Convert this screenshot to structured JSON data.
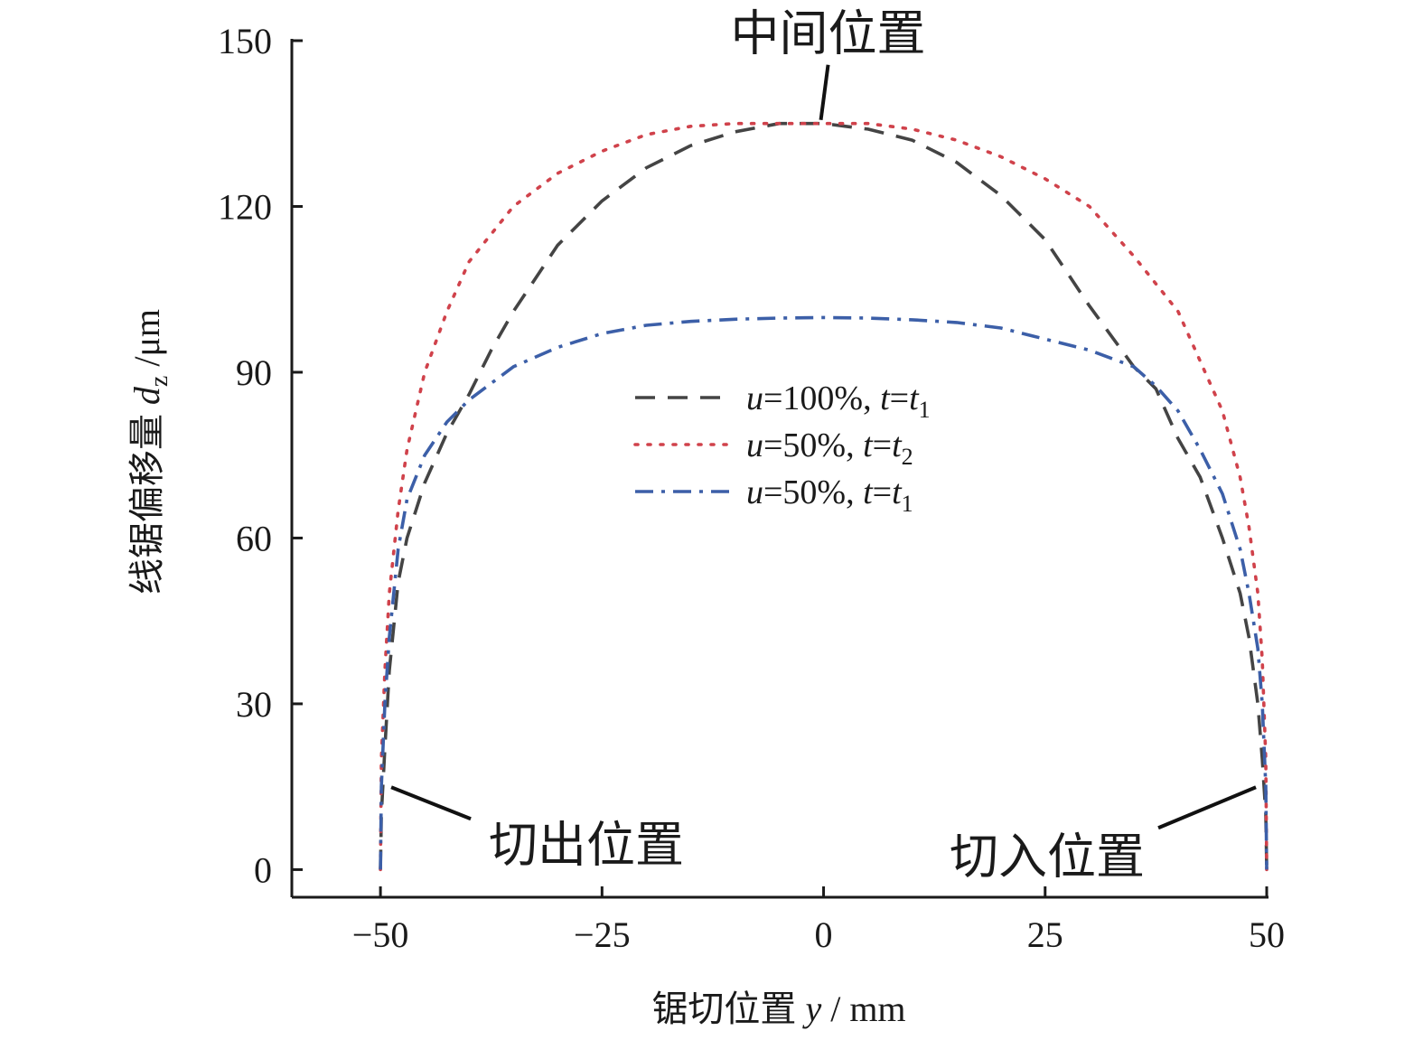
{
  "chart_data": {
    "type": "line",
    "xlabel": {
      "text": "锯切位置 ",
      "var": "y",
      "unit": " / mm"
    },
    "ylabel": {
      "text": "线锯偏移量 ",
      "var": "d",
      "sub": "z",
      "unit": " /μm"
    },
    "xlim": [
      -60,
      50
    ],
    "ylim": [
      -5,
      150
    ],
    "xticks": [
      -50,
      -25,
      0,
      25,
      50
    ],
    "xtick_labels": [
      "−50",
      "−25",
      "0",
      "25",
      "50"
    ],
    "yticks": [
      0,
      30,
      60,
      90,
      120,
      150
    ],
    "ytick_labels": [
      "0",
      "30",
      "60",
      "90",
      "120",
      "150"
    ],
    "grid": false,
    "legend_position": "center",
    "series": [
      {
        "name": "u=100%, t=t1",
        "name_parts": {
          "v1": "u",
          "eq1": "=100%, ",
          "v2": "t",
          "eq2": "=",
          "v3": "t",
          "sub": "1"
        },
        "color": "#444444",
        "style": "dashed",
        "x": [
          -50,
          -49.9,
          -49.5,
          -49,
          -48,
          -47,
          -45,
          -42.5,
          -40,
          -37.5,
          -35,
          -30,
          -25,
          -20,
          -15,
          -10,
          -5,
          0,
          5,
          10,
          15,
          20,
          25,
          30,
          35,
          37.5,
          40,
          42.5,
          45,
          47,
          48,
          49,
          49.5,
          49.9,
          50
        ],
        "y": [
          0,
          10,
          22,
          36,
          52,
          60,
          70,
          79,
          86,
          94,
          101,
          113,
          121,
          127,
          131,
          133.5,
          135,
          135,
          134,
          132,
          128,
          122,
          114,
          102,
          91,
          87,
          78,
          71,
          60,
          50,
          42,
          30,
          20,
          10,
          0
        ]
      },
      {
        "name": "u=50%, t=t2",
        "name_parts": {
          "v1": "u",
          "eq1": "=50%, ",
          "v2": "t",
          "eq2": "=",
          "v3": "t",
          "sub": "2"
        },
        "color": "#d0424b",
        "style": "dotted",
        "x": [
          -50,
          -49.9,
          -49.5,
          -49,
          -48,
          -47,
          -45,
          -42.5,
          -40,
          -35,
          -30,
          -25,
          -20,
          -15,
          -10,
          -5,
          0,
          5,
          10,
          15,
          20,
          25,
          30,
          35,
          40,
          42.5,
          45,
          47,
          48,
          49,
          49.5,
          49.9,
          50
        ],
        "y": [
          0,
          20,
          36,
          50,
          65,
          76,
          90,
          101,
          110,
          120,
          126,
          130,
          133,
          134.5,
          135,
          135,
          135,
          135,
          134,
          132,
          129,
          125,
          120,
          111,
          101,
          92,
          83,
          71,
          62,
          50,
          38,
          20,
          0
        ]
      },
      {
        "name": "u=50%, t=t1",
        "name_parts": {
          "v1": "u",
          "eq1": "=50%, ",
          "v2": "t",
          "eq2": "=",
          "v3": "t",
          "sub": "1"
        },
        "color": "#3c5fa8",
        "style": "dashdot",
        "x": [
          -50,
          -49.9,
          -49.5,
          -49,
          -48,
          -47,
          -45,
          -42.5,
          -40,
          -37.5,
          -35,
          -30,
          -25,
          -20,
          -15,
          -10,
          -5,
          0,
          5,
          10,
          15,
          20,
          25,
          30,
          35,
          37.5,
          40,
          42.5,
          45,
          47,
          48,
          49,
          49.5,
          49.9,
          50
        ],
        "y": [
          0,
          15,
          30,
          42,
          58,
          67,
          75,
          81,
          85,
          88,
          91,
          94.5,
          97,
          98.5,
          99.2,
          99.6,
          99.8,
          99.9,
          99.8,
          99.5,
          99,
          98,
          96,
          94,
          91,
          87.5,
          83,
          76,
          68,
          58,
          50,
          40,
          30,
          15,
          0
        ]
      }
    ],
    "annotations": [
      {
        "text": "中间位置",
        "data_x": 0,
        "data_y": 135,
        "anchor": "middle"
      },
      {
        "text": "切出位置",
        "data_x": -49.8,
        "data_y": 10,
        "anchor": "start"
      },
      {
        "text": "切入位置",
        "data_x": 49.8,
        "data_y": 10,
        "anchor": "end"
      }
    ]
  }
}
